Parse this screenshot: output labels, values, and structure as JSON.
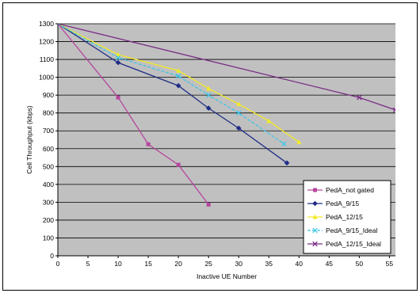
{
  "chart_data": {
    "type": "line",
    "xlabel": "Inactive UE Number",
    "ylabel": "Cell Throughput (kbps)",
    "xlim": [
      0,
      56
    ],
    "ylim": [
      0,
      1300
    ],
    "xticks": [
      0,
      5,
      10,
      15,
      20,
      25,
      30,
      35,
      40,
      45,
      50,
      55
    ],
    "yticks": [
      0,
      100,
      200,
      300,
      400,
      500,
      600,
      700,
      800,
      900,
      1000,
      1100,
      1200,
      1300
    ],
    "grid": true,
    "plot_background": "#c0c0c0",
    "legend_position": "bottom-right",
    "series": [
      {
        "name": "PedA_not gated",
        "color": "#b5479e",
        "marker": "square",
        "line_style": "solid",
        "x": [
          0,
          10,
          15,
          20,
          25
        ],
        "y": [
          1300,
          887,
          625,
          510,
          287
        ]
      },
      {
        "name": "PedA_9/15",
        "color": "#1f2d86",
        "marker": "diamond",
        "line_style": "solid",
        "x": [
          0,
          10,
          20,
          25,
          30,
          38
        ],
        "y": [
          1300,
          1082,
          953,
          827,
          715,
          520
        ]
      },
      {
        "name": "PedA_12/15",
        "color": "#f2ea27",
        "marker": "triangle",
        "line_style": "solid",
        "x": [
          0,
          10,
          20,
          25,
          30,
          35,
          40
        ],
        "y": [
          1300,
          1127,
          1037,
          937,
          850,
          755,
          637
        ]
      },
      {
        "name": "PedA_9/15_Ideal",
        "color": "#3ec6e8",
        "marker": "x",
        "line_style": "dashed",
        "x": [
          0,
          10,
          20,
          25,
          30,
          37.5
        ],
        "y": [
          1300,
          1110,
          1007,
          900,
          800,
          627
        ]
      },
      {
        "name": "PedA_12/15_Ideal",
        "color": "#7a2d86",
        "marker": "x",
        "line_style": "solid",
        "x": [
          0,
          50,
          56
        ],
        "y": [
          1300,
          887,
          817
        ]
      }
    ]
  }
}
